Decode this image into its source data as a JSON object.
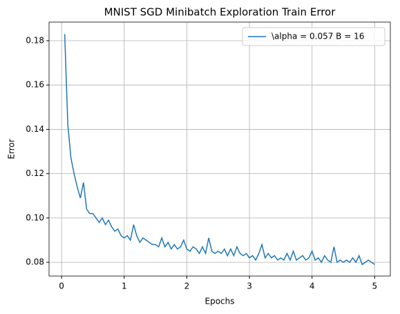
{
  "chart_data": {
    "type": "line",
    "title": "MNIST SGD Minibatch Exploration Train Error",
    "xlabel": "Epochs",
    "ylabel": "Error",
    "x": [
      0.05,
      0.1,
      0.15,
      0.2,
      0.25,
      0.3,
      0.35,
      0.4,
      0.45,
      0.5,
      0.55,
      0.6,
      0.65,
      0.7,
      0.75,
      0.8,
      0.85,
      0.9,
      0.95,
      1.0,
      1.05,
      1.1,
      1.15,
      1.2,
      1.25,
      1.3,
      1.35,
      1.4,
      1.45,
      1.5,
      1.55,
      1.6,
      1.65,
      1.7,
      1.75,
      1.8,
      1.85,
      1.9,
      1.95,
      2.0,
      2.05,
      2.1,
      2.15,
      2.2,
      2.25,
      2.3,
      2.35,
      2.4,
      2.45,
      2.5,
      2.55,
      2.6,
      2.65,
      2.7,
      2.75,
      2.8,
      2.85,
      2.9,
      2.95,
      3.0,
      3.05,
      3.1,
      3.15,
      3.2,
      3.25,
      3.3,
      3.35,
      3.4,
      3.45,
      3.5,
      3.55,
      3.6,
      3.65,
      3.7,
      3.75,
      3.8,
      3.85,
      3.9,
      3.95,
      4.0,
      4.05,
      4.1,
      4.15,
      4.2,
      4.25,
      4.3,
      4.35,
      4.4,
      4.45,
      4.5,
      4.55,
      4.6,
      4.65,
      4.7,
      4.75,
      4.8,
      4.85,
      4.9,
      4.95,
      5.0
    ],
    "series": [
      {
        "name": "\\alpha = 0.057 B = 16",
        "color": "#1f77b4",
        "values": [
          0.183,
          0.142,
          0.127,
          0.12,
          0.114,
          0.109,
          0.116,
          0.104,
          0.102,
          0.102,
          0.1,
          0.098,
          0.1,
          0.097,
          0.099,
          0.096,
          0.094,
          0.095,
          0.092,
          0.091,
          0.092,
          0.09,
          0.097,
          0.092,
          0.089,
          0.091,
          0.09,
          0.089,
          0.088,
          0.088,
          0.087,
          0.091,
          0.087,
          0.089,
          0.086,
          0.088,
          0.086,
          0.087,
          0.09,
          0.086,
          0.085,
          0.087,
          0.086,
          0.084,
          0.087,
          0.084,
          0.091,
          0.085,
          0.084,
          0.085,
          0.084,
          0.086,
          0.083,
          0.086,
          0.083,
          0.087,
          0.084,
          0.083,
          0.084,
          0.082,
          0.083,
          0.081,
          0.084,
          0.088,
          0.082,
          0.084,
          0.082,
          0.083,
          0.081,
          0.082,
          0.081,
          0.084,
          0.081,
          0.085,
          0.081,
          0.082,
          0.083,
          0.081,
          0.082,
          0.085,
          0.081,
          0.082,
          0.08,
          0.083,
          0.081,
          0.08,
          0.087,
          0.08,
          0.081,
          0.08,
          0.081,
          0.08,
          0.082,
          0.08,
          0.083,
          0.079,
          0.08,
          0.081,
          0.08,
          0.079
        ]
      }
    ],
    "xlim": [
      -0.2,
      5.25
    ],
    "ylim": [
      0.0738,
      0.1884
    ],
    "xticks": [
      0,
      1,
      2,
      3,
      4,
      5
    ],
    "yticks": [
      0.08,
      {
        "value": 0.1,
        "label": "0.10"
      },
      0.12,
      0.14,
      0.16,
      0.18
    ],
    "grid": true,
    "legend": "upper right"
  }
}
